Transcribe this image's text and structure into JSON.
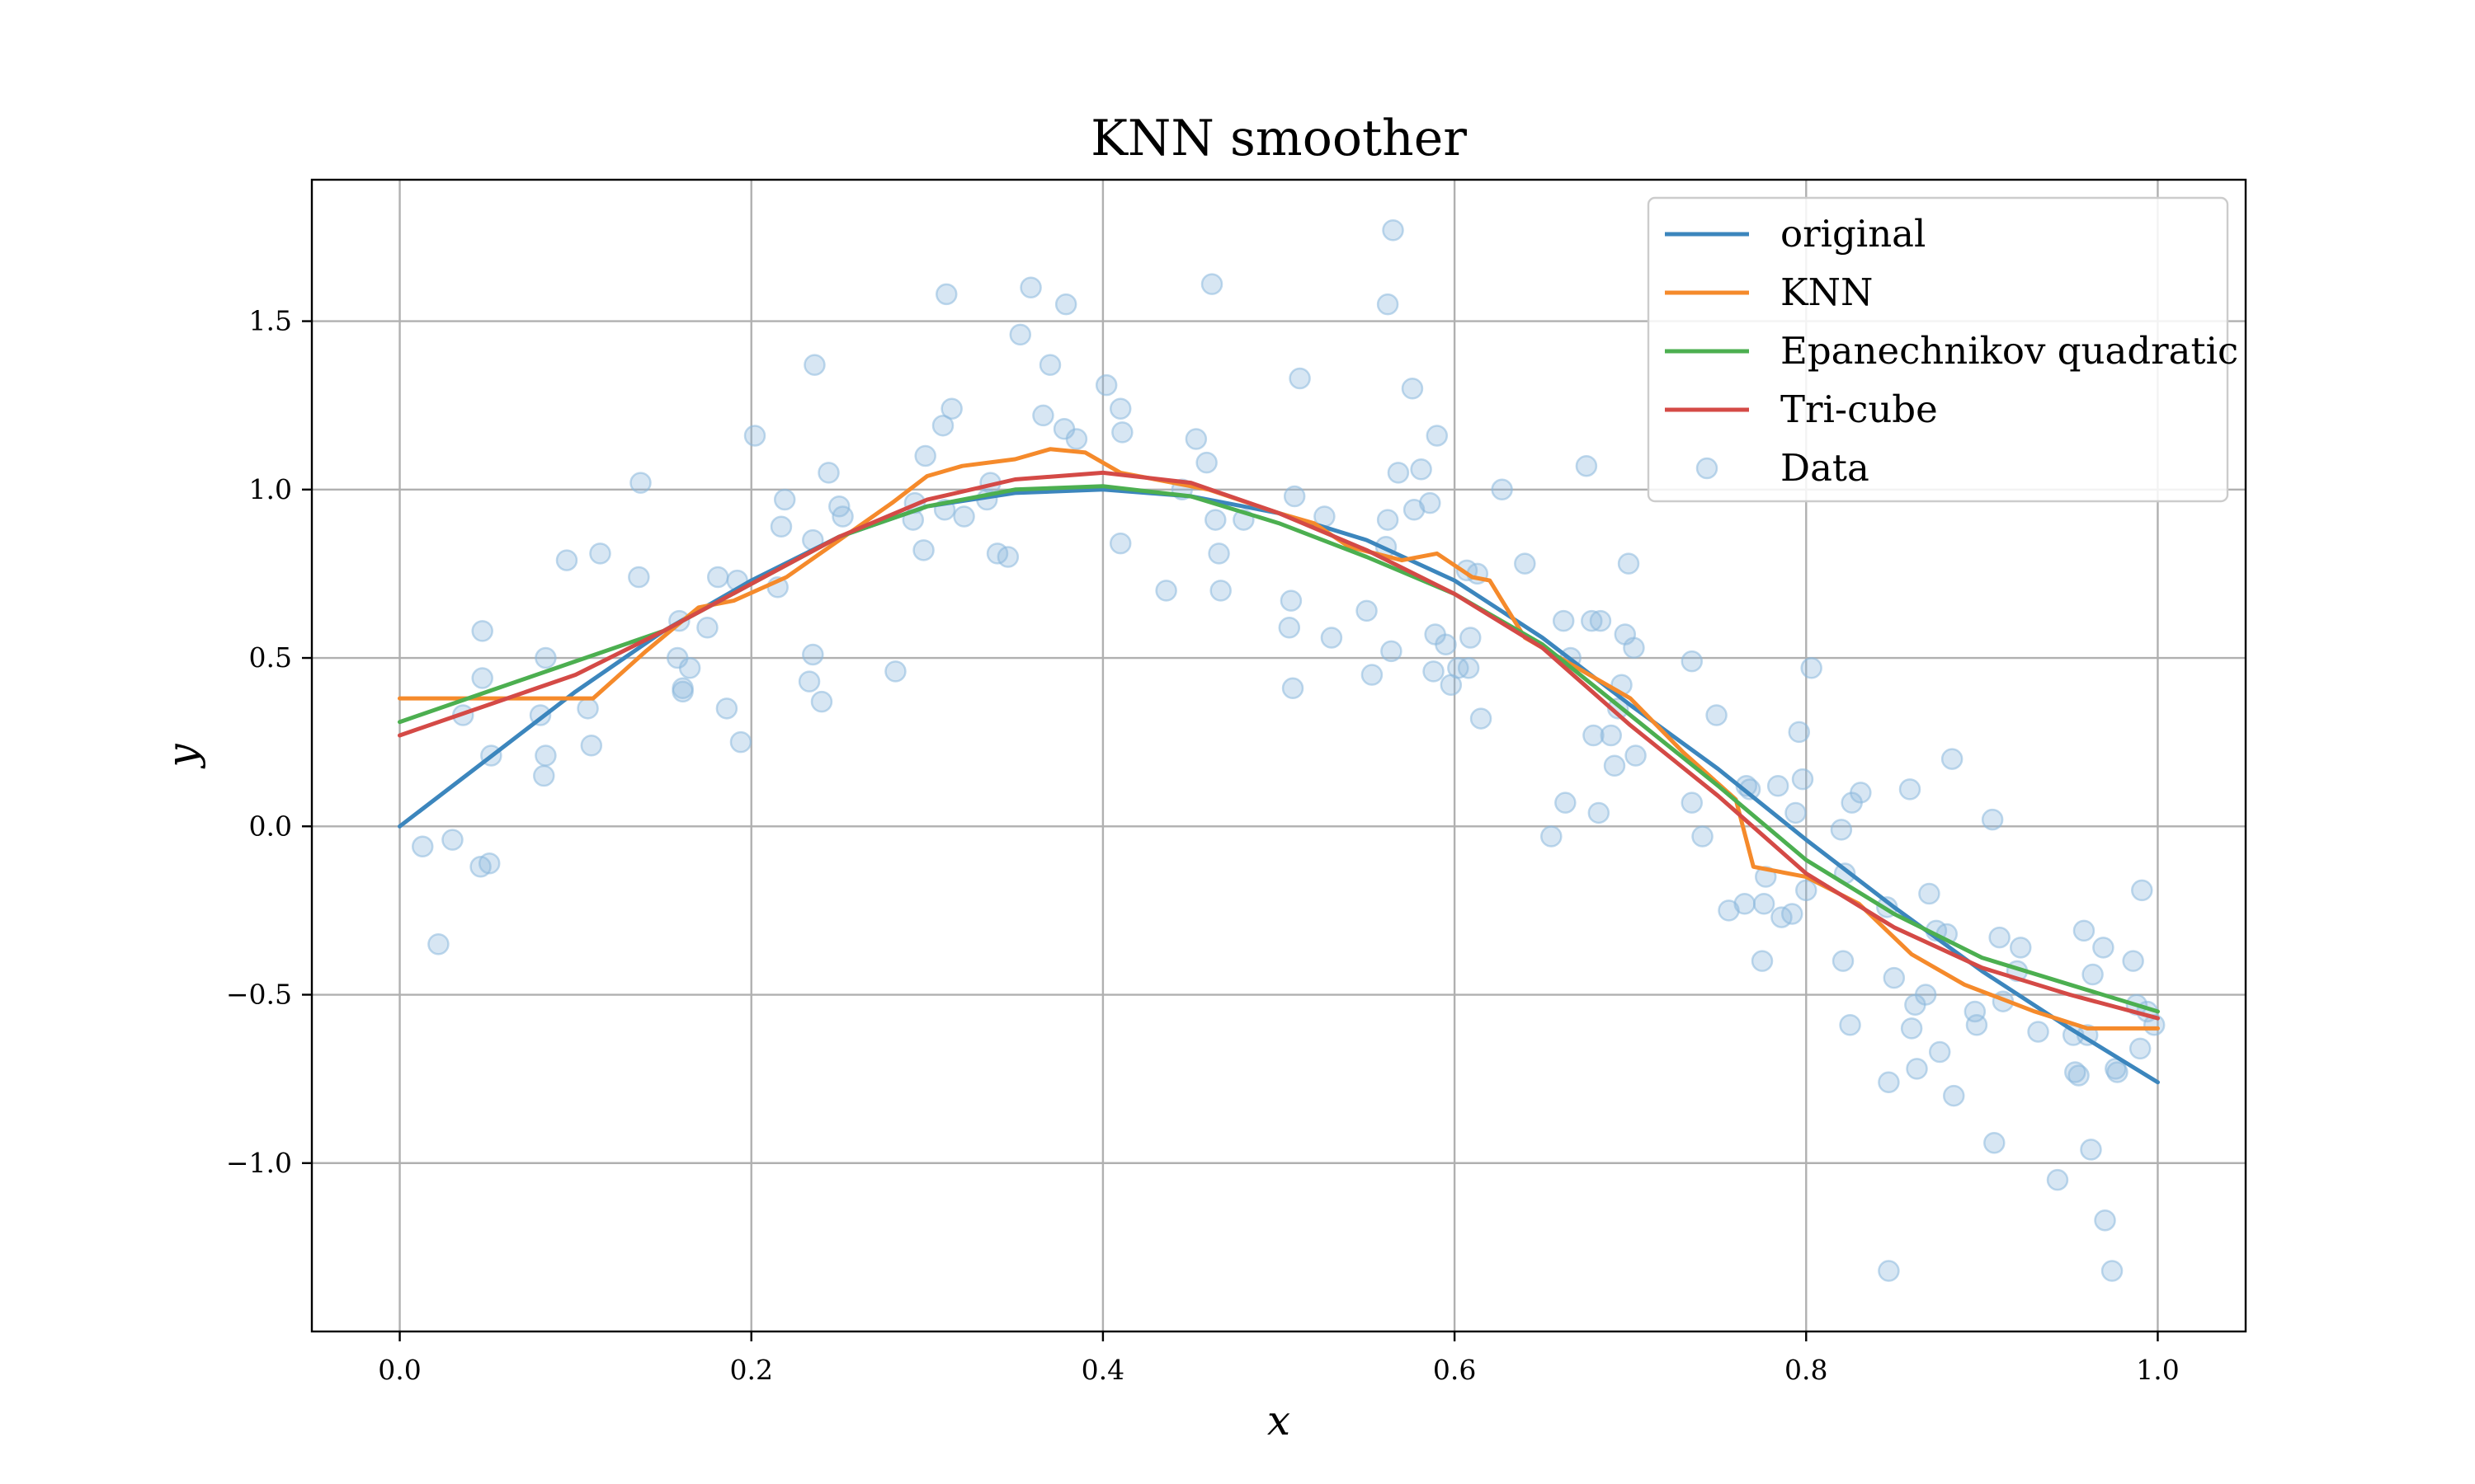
{
  "chart_data": {
    "type": "line",
    "title": "KNN smoother",
    "xlabel": "x",
    "ylabel": "y",
    "xlim": [
      -0.05,
      1.05
    ],
    "ylim": [
      -1.5,
      1.92
    ],
    "x_ticks": [
      0.0,
      0.2,
      0.4,
      0.6,
      0.8,
      1.0
    ],
    "x_tick_labels": [
      "0.0",
      "0.2",
      "0.4",
      "0.6",
      "0.8",
      "1.0"
    ],
    "y_ticks": [
      -1.0,
      -0.5,
      0.0,
      0.5,
      1.0,
      1.5
    ],
    "y_tick_labels": [
      "−1.0",
      "−0.5",
      "0.0",
      "0.5",
      "1.0",
      "1.5"
    ],
    "grid": true,
    "legend_position": "upper-right",
    "series": [
      {
        "name": "original",
        "color": "#3c86bd",
        "x": [
          0.0,
          0.05,
          0.1,
          0.15,
          0.2,
          0.25,
          0.3,
          0.35,
          0.4,
          0.45,
          0.5,
          0.55,
          0.6,
          0.65,
          0.7,
          0.75,
          0.8,
          0.85,
          0.9,
          0.95,
          1.0
        ],
        "y": [
          0.0,
          0.2,
          0.4,
          0.58,
          0.73,
          0.86,
          0.95,
          0.99,
          1.0,
          0.98,
          0.93,
          0.85,
          0.73,
          0.56,
          0.36,
          0.17,
          -0.04,
          -0.24,
          -0.43,
          -0.6,
          -0.76
        ]
      },
      {
        "name": "KNN",
        "color": "#f58a2b",
        "x": [
          0.0,
          0.05,
          0.1,
          0.11,
          0.14,
          0.17,
          0.19,
          0.22,
          0.25,
          0.28,
          0.3,
          0.32,
          0.35,
          0.37,
          0.39,
          0.41,
          0.43,
          0.46,
          0.5,
          0.52,
          0.54,
          0.57,
          0.59,
          0.61,
          0.62,
          0.64,
          0.67,
          0.7,
          0.73,
          0.76,
          0.77,
          0.8,
          0.83,
          0.86,
          0.89,
          0.91,
          0.93,
          0.96,
          1.0
        ],
        "y": [
          0.38,
          0.38,
          0.38,
          0.38,
          0.52,
          0.65,
          0.67,
          0.74,
          0.85,
          0.96,
          1.04,
          1.07,
          1.09,
          1.12,
          1.11,
          1.05,
          1.03,
          1.0,
          0.93,
          0.9,
          0.83,
          0.79,
          0.81,
          0.74,
          0.73,
          0.56,
          0.47,
          0.38,
          0.22,
          0.08,
          -0.12,
          -0.15,
          -0.23,
          -0.38,
          -0.47,
          -0.51,
          -0.55,
          -0.6,
          -0.6
        ]
      },
      {
        "name": "Epanechnikov quadratic",
        "color": "#4caf50",
        "x": [
          0.0,
          0.05,
          0.1,
          0.15,
          0.2,
          0.25,
          0.3,
          0.35,
          0.4,
          0.45,
          0.5,
          0.55,
          0.6,
          0.65,
          0.7,
          0.75,
          0.8,
          0.85,
          0.9,
          0.95,
          1.0
        ],
        "y": [
          0.31,
          0.4,
          0.49,
          0.58,
          0.72,
          0.86,
          0.95,
          1.0,
          1.01,
          0.98,
          0.9,
          0.8,
          0.69,
          0.54,
          0.33,
          0.12,
          -0.1,
          -0.26,
          -0.39,
          -0.47,
          -0.55
        ]
      },
      {
        "name": "Tri-cube",
        "color": "#d44a46",
        "x": [
          0.0,
          0.05,
          0.1,
          0.15,
          0.2,
          0.25,
          0.3,
          0.35,
          0.4,
          0.45,
          0.5,
          0.55,
          0.6,
          0.65,
          0.7,
          0.75,
          0.8,
          0.85,
          0.9,
          0.95,
          1.0
        ],
        "y": [
          0.27,
          0.36,
          0.45,
          0.58,
          0.72,
          0.86,
          0.97,
          1.03,
          1.05,
          1.02,
          0.93,
          0.82,
          0.69,
          0.53,
          0.3,
          0.09,
          -0.14,
          -0.3,
          -0.42,
          -0.5,
          -0.57
        ]
      }
    ],
    "scatter": {
      "name": "Data",
      "color": "#8bb8dc",
      "points": [
        [
          0.013,
          -0.06
        ],
        [
          0.022,
          -0.35
        ],
        [
          0.03,
          -0.04
        ],
        [
          0.036,
          0.33
        ],
        [
          0.046,
          -0.12
        ],
        [
          0.047,
          0.44
        ],
        [
          0.047,
          0.58
        ],
        [
          0.051,
          -0.11
        ],
        [
          0.052,
          0.21
        ],
        [
          0.08,
          0.33
        ],
        [
          0.082,
          0.15
        ],
        [
          0.083,
          0.5
        ],
        [
          0.083,
          0.21
        ],
        [
          0.095,
          0.79
        ],
        [
          0.107,
          0.35
        ],
        [
          0.109,
          0.24
        ],
        [
          0.114,
          0.81
        ],
        [
          0.136,
          0.74
        ],
        [
          0.137,
          1.02
        ],
        [
          0.158,
          0.5
        ],
        [
          0.159,
          0.61
        ],
        [
          0.161,
          0.4
        ],
        [
          0.161,
          0.41
        ],
        [
          0.165,
          0.47
        ],
        [
          0.175,
          0.59
        ],
        [
          0.181,
          0.74
        ],
        [
          0.186,
          0.35
        ],
        [
          0.192,
          0.73
        ],
        [
          0.194,
          0.25
        ],
        [
          0.202,
          1.16
        ],
        [
          0.215,
          0.71
        ],
        [
          0.217,
          0.89
        ],
        [
          0.219,
          0.97
        ],
        [
          0.233,
          0.43
        ],
        [
          0.235,
          0.51
        ],
        [
          0.235,
          0.85
        ],
        [
          0.236,
          1.37
        ],
        [
          0.24,
          0.37
        ],
        [
          0.244,
          1.05
        ],
        [
          0.25,
          0.95
        ],
        [
          0.252,
          0.92
        ],
        [
          0.282,
          0.46
        ],
        [
          0.292,
          0.91
        ],
        [
          0.293,
          0.96
        ],
        [
          0.298,
          0.82
        ],
        [
          0.299,
          1.1
        ],
        [
          0.309,
          1.19
        ],
        [
          0.31,
          0.94
        ],
        [
          0.311,
          1.58
        ],
        [
          0.314,
          1.24
        ],
        [
          0.321,
          0.92
        ],
        [
          0.334,
          0.97
        ],
        [
          0.336,
          1.02
        ],
        [
          0.34,
          0.81
        ],
        [
          0.346,
          0.8
        ],
        [
          0.353,
          1.46
        ],
        [
          0.359,
          1.6
        ],
        [
          0.366,
          1.22
        ],
        [
          0.37,
          1.37
        ],
        [
          0.378,
          1.18
        ],
        [
          0.379,
          1.55
        ],
        [
          0.385,
          1.15
        ],
        [
          0.402,
          1.31
        ],
        [
          0.41,
          0.84
        ],
        [
          0.41,
          1.24
        ],
        [
          0.411,
          1.17
        ],
        [
          0.436,
          0.7
        ],
        [
          0.445,
          1.0
        ],
        [
          0.453,
          1.15
        ],
        [
          0.459,
          1.08
        ],
        [
          0.462,
          1.61
        ],
        [
          0.464,
          0.91
        ],
        [
          0.466,
          0.81
        ],
        [
          0.467,
          0.7
        ],
        [
          0.48,
          0.91
        ],
        [
          0.506,
          0.59
        ],
        [
          0.507,
          0.67
        ],
        [
          0.508,
          0.41
        ],
        [
          0.509,
          0.98
        ],
        [
          0.512,
          1.33
        ],
        [
          0.526,
          0.92
        ],
        [
          0.53,
          0.56
        ],
        [
          0.55,
          0.64
        ],
        [
          0.553,
          0.45
        ],
        [
          0.561,
          0.83
        ],
        [
          0.562,
          0.91
        ],
        [
          0.562,
          1.55
        ],
        [
          0.564,
          0.52
        ],
        [
          0.565,
          1.77
        ],
        [
          0.568,
          1.05
        ],
        [
          0.576,
          1.3
        ],
        [
          0.577,
          0.94
        ],
        [
          0.581,
          1.06
        ],
        [
          0.586,
          0.96
        ],
        [
          0.588,
          0.46
        ],
        [
          0.589,
          0.57
        ],
        [
          0.59,
          1.16
        ],
        [
          0.595,
          0.54
        ],
        [
          0.598,
          0.42
        ],
        [
          0.602,
          0.47
        ],
        [
          0.607,
          0.76
        ],
        [
          0.608,
          0.47
        ],
        [
          0.609,
          0.56
        ],
        [
          0.613,
          0.75
        ],
        [
          0.615,
          0.32
        ],
        [
          0.627,
          1.0
        ],
        [
          0.64,
          0.78
        ],
        [
          0.655,
          -0.03
        ],
        [
          0.662,
          0.61
        ],
        [
          0.663,
          0.07
        ],
        [
          0.666,
          0.5
        ],
        [
          0.675,
          1.07
        ],
        [
          0.678,
          0.61
        ],
        [
          0.679,
          0.27
        ],
        [
          0.682,
          0.04
        ],
        [
          0.683,
          0.61
        ],
        [
          0.689,
          0.27
        ],
        [
          0.691,
          0.18
        ],
        [
          0.693,
          0.35
        ],
        [
          0.695,
          0.42
        ],
        [
          0.697,
          0.57
        ],
        [
          0.699,
          0.78
        ],
        [
          0.702,
          0.53
        ],
        [
          0.703,
          0.21
        ],
        [
          0.735,
          0.49
        ],
        [
          0.735,
          0.07
        ],
        [
          0.741,
          -0.03
        ],
        [
          0.749,
          0.33
        ],
        [
          0.756,
          -0.25
        ],
        [
          0.765,
          -0.23
        ],
        [
          0.766,
          0.12
        ],
        [
          0.768,
          0.11
        ],
        [
          0.775,
          -0.4
        ],
        [
          0.776,
          -0.23
        ],
        [
          0.777,
          -0.15
        ],
        [
          0.784,
          0.12
        ],
        [
          0.786,
          -0.27
        ],
        [
          0.792,
          -0.26
        ],
        [
          0.794,
          0.04
        ],
        [
          0.796,
          0.28
        ],
        [
          0.798,
          0.14
        ],
        [
          0.8,
          -0.19
        ],
        [
          0.803,
          0.47
        ],
        [
          0.82,
          -0.01
        ],
        [
          0.821,
          -0.4
        ],
        [
          0.822,
          -0.14
        ],
        [
          0.825,
          -0.59
        ],
        [
          0.826,
          0.07
        ],
        [
          0.831,
          0.1
        ],
        [
          0.846,
          -0.24
        ],
        [
          0.847,
          -0.76
        ],
        [
          0.847,
          -1.32
        ],
        [
          0.85,
          -0.45
        ],
        [
          0.859,
          0.11
        ],
        [
          0.86,
          -0.6
        ],
        [
          0.862,
          -0.53
        ],
        [
          0.863,
          -0.72
        ],
        [
          0.868,
          -0.5
        ],
        [
          0.87,
          -0.2
        ],
        [
          0.874,
          -0.31
        ],
        [
          0.876,
          -0.67
        ],
        [
          0.88,
          -0.32
        ],
        [
          0.883,
          0.2
        ],
        [
          0.884,
          -0.8
        ],
        [
          0.896,
          -0.55
        ],
        [
          0.897,
          -0.59
        ],
        [
          0.906,
          0.02
        ],
        [
          0.907,
          -0.94
        ],
        [
          0.91,
          -0.33
        ],
        [
          0.912,
          -0.52
        ],
        [
          0.92,
          -0.43
        ],
        [
          0.922,
          -0.36
        ],
        [
          0.932,
          -0.61
        ],
        [
          0.943,
          -1.05
        ],
        [
          0.952,
          -0.62
        ],
        [
          0.953,
          -0.73
        ],
        [
          0.955,
          -0.74
        ],
        [
          0.958,
          -0.31
        ],
        [
          0.96,
          -0.62
        ],
        [
          0.962,
          -0.96
        ],
        [
          0.963,
          -0.44
        ],
        [
          0.969,
          -0.36
        ],
        [
          0.97,
          -1.17
        ],
        [
          0.974,
          -1.32
        ],
        [
          0.976,
          -0.72
        ],
        [
          0.977,
          -0.73
        ],
        [
          0.986,
          -0.4
        ],
        [
          0.988,
          -0.53
        ],
        [
          0.99,
          -0.66
        ],
        [
          0.991,
          -0.19
        ],
        [
          0.994,
          -0.55
        ],
        [
          0.998,
          -0.59
        ]
      ]
    }
  }
}
